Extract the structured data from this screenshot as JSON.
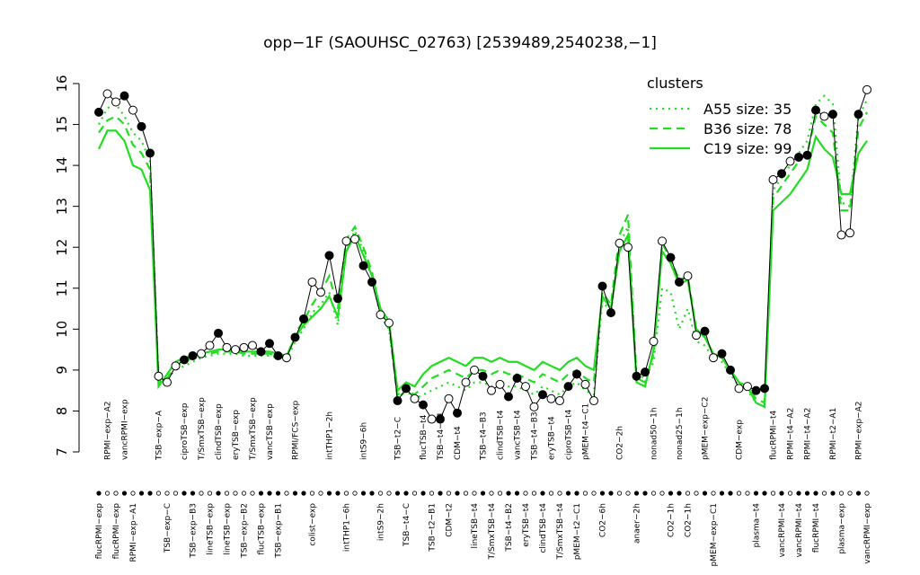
{
  "chart_data": {
    "type": "line",
    "title": "opp−1F (SAOUHSC_02763) [2539489,2540238,−1]",
    "ylim": [
      7,
      16
    ],
    "yticks": [
      7,
      8,
      9,
      10,
      11,
      12,
      13,
      14,
      15,
      16
    ],
    "legend_title": "clusters",
    "legend_position": "top-right",
    "categories": [
      "flucRPMI−exp",
      "RPMI−exp−A2",
      "flucRPMI−exp",
      "vancRPMI−exp",
      "RPMI−exp−A1",
      null,
      null,
      "TSB−exp−A",
      "TSB−exp−C",
      null,
      "ciproTSB−exp",
      "TSB−exp−B3",
      "T/SmxTSB−exp",
      "lineTSB−exp",
      "clindTSB−exp",
      "lineTSB−exp",
      "eryTSB−exp",
      "TSB−exp−B2",
      "T/SmxTSB−exp",
      "flucTSB−exp",
      "vancTSB−exp",
      "TSB−exp−B1",
      null,
      "RPMI/FCS−exp",
      null,
      "colist−exp",
      null,
      "intTHP1−2h",
      null,
      "intTHP1−6h",
      null,
      "intS9−6h",
      null,
      "intS9−2h",
      null,
      "TSB−t2−C",
      "TSB−t4−C",
      null,
      "flucTSB−t4",
      "TSB−t2−B1",
      "TSB−t4−B1",
      "CDM−t2",
      "CDM−t4",
      null,
      "lineTSB−t4",
      "TSB−t4−B3",
      "T/SmxTSB−t4",
      "clindTSB−t4",
      "TSB−t4−B2",
      "vancTSB−t4",
      "eryTSB−t4",
      "TSB−t4−B3",
      "clindTSB−t4",
      "eryTSB−t4",
      "T/SmxTSB−t4",
      "ciproTSB−t4",
      "pMEM−t2−C1",
      "pMEM−t4−C1",
      null,
      "CO2−6h",
      null,
      "CO2−2h",
      null,
      "anaer−2h",
      null,
      "nonad50−1h",
      null,
      "CO2−1h",
      "nonad25−1h",
      "CO2−1h",
      null,
      "pMEM−exp−C2",
      "pMEM−exp−C1",
      null,
      null,
      "CDM−exp",
      null,
      "plasma−t4",
      null,
      "flucRPMI−t4",
      "vancRPMI−t4",
      "RPMI−t4−A2",
      "vancRPMI−t4",
      "RPMI−t4−A2",
      "flucRPMI−t4",
      null,
      "RPMI−t2−A1",
      "plasma−exp",
      null,
      "RPMI−exp−A2",
      "vancRPMI−exp"
    ],
    "series": [
      {
        "color": "black",
        "values": [
          15.3,
          15.75,
          15.55,
          15.7,
          15.35,
          14.95,
          14.3,
          8.85,
          8.7,
          9.1,
          9.25,
          9.35,
          9.4,
          9.6,
          9.9,
          9.55,
          9.5,
          9.55,
          9.6,
          9.45,
          9.65,
          9.35,
          9.3,
          9.8,
          10.25,
          11.15,
          10.9,
          11.8,
          10.75,
          12.15,
          12.2,
          11.55,
          11.15,
          10.35,
          10.15,
          8.25,
          8.55,
          8.3,
          8.15,
          7.8,
          7.8,
          8.3,
          7.95,
          8.7,
          9.0,
          8.85,
          8.5,
          8.65,
          8.35,
          8.8,
          8.6,
          8.1,
          8.4,
          8.3,
          8.25,
          8.6,
          8.9,
          8.65,
          8.25,
          11.05,
          10.4,
          12.1,
          12.0,
          8.85,
          8.95,
          9.7,
          12.15,
          11.75,
          11.15,
          11.3,
          9.85,
          9.95,
          9.3,
          9.4,
          9.0,
          8.55,
          8.6,
          8.5,
          8.55,
          13.65,
          13.8,
          14.1,
          14.2,
          14.25,
          15.35,
          15.2,
          15.25,
          12.3,
          12.35,
          15.25,
          15.85
        ],
        "marker_fills": [
          "black",
          "white",
          "white",
          "black",
          "white",
          "black",
          "black",
          "white",
          "white",
          "white",
          "black",
          "black",
          "white",
          "white",
          "black",
          "white",
          "white",
          "white",
          "white",
          "black",
          "black",
          "black",
          "white",
          "black",
          "black",
          "white",
          "white",
          "black",
          "black",
          "white",
          "white",
          "black",
          "black",
          "white",
          "white",
          "black",
          "black",
          "white",
          "black",
          "white",
          "black",
          "white",
          "black",
          "white",
          "white",
          "black",
          "white",
          "white",
          "black",
          "black",
          "white",
          "white",
          "black",
          "white",
          "white",
          "black",
          "black",
          "white",
          "white",
          "black",
          "black",
          "white",
          "white",
          "black",
          "black",
          "white",
          "white",
          "black",
          "black",
          "white",
          "white",
          "black",
          "white",
          "black",
          "black",
          "white",
          "white",
          "black",
          "black",
          "white",
          "black",
          "white",
          "black",
          "black",
          "black",
          "white",
          "black",
          "white",
          "white",
          "black",
          "white"
        ]
      },
      {
        "name": "A55 size: 35",
        "color": "#22dd22",
        "dash": "dotted",
        "values": [
          15.0,
          15.4,
          15.5,
          15.2,
          14.8,
          14.6,
          14.1,
          8.8,
          8.8,
          9.0,
          9.1,
          9.2,
          9.3,
          9.35,
          9.4,
          9.4,
          9.4,
          9.35,
          9.35,
          9.35,
          9.35,
          9.3,
          9.25,
          9.7,
          10.0,
          10.4,
          10.6,
          10.9,
          10.1,
          12.0,
          12.4,
          11.9,
          11.3,
          10.3,
          10.0,
          8.4,
          8.5,
          8.3,
          8.4,
          8.5,
          8.6,
          8.7,
          8.6,
          8.5,
          8.7,
          8.7,
          8.6,
          8.7,
          8.6,
          8.6,
          8.5,
          8.4,
          8.6,
          8.5,
          8.4,
          8.6,
          8.7,
          8.5,
          8.4,
          10.7,
          10.4,
          12.1,
          12.5,
          8.9,
          8.8,
          9.2,
          11.0,
          10.9,
          10.0,
          10.5,
          9.7,
          9.6,
          9.3,
          9.2,
          8.9,
          8.6,
          8.5,
          8.2,
          8.1,
          13.4,
          13.7,
          14.0,
          14.3,
          14.6,
          15.5,
          15.7,
          15.5,
          13.1,
          13.0,
          15.2,
          15.6
        ]
      },
      {
        "name": "B36 size: 78",
        "color": "#22dd22",
        "dash": "dashed",
        "values": [
          14.8,
          15.1,
          15.2,
          15.0,
          14.5,
          14.3,
          13.9,
          8.7,
          8.8,
          9.1,
          9.2,
          9.3,
          9.35,
          9.4,
          9.45,
          9.45,
          9.45,
          9.4,
          9.4,
          9.4,
          9.4,
          9.35,
          9.3,
          9.9,
          10.2,
          10.6,
          10.9,
          11.3,
          10.5,
          12.2,
          12.5,
          12.0,
          11.4,
          10.4,
          10.1,
          8.3,
          8.5,
          8.4,
          8.6,
          8.8,
          8.9,
          9.0,
          8.9,
          8.8,
          9.0,
          9.0,
          8.9,
          9.0,
          8.9,
          8.9,
          8.8,
          8.7,
          8.9,
          8.8,
          8.7,
          8.9,
          9.0,
          8.8,
          8.7,
          10.9,
          10.6,
          12.3,
          12.8,
          8.8,
          8.7,
          9.4,
          12.1,
          11.7,
          11.2,
          11.3,
          10.0,
          9.8,
          9.4,
          9.3,
          9.0,
          8.7,
          8.6,
          8.3,
          8.2,
          13.2,
          13.5,
          13.8,
          14.1,
          14.3,
          15.2,
          15.0,
          14.8,
          12.9,
          12.9,
          14.9,
          15.3
        ]
      },
      {
        "name": "C19 size: 99",
        "color": "#22dd22",
        "dash": "solid",
        "values": [
          14.4,
          14.85,
          14.85,
          14.6,
          14.0,
          13.9,
          13.4,
          8.6,
          8.9,
          9.2,
          9.3,
          9.35,
          9.4,
          9.45,
          9.5,
          9.5,
          9.5,
          9.45,
          9.45,
          9.45,
          9.45,
          9.4,
          9.35,
          9.8,
          10.1,
          10.3,
          10.5,
          10.8,
          10.3,
          11.9,
          12.3,
          11.8,
          11.3,
          10.5,
          10.2,
          8.5,
          8.7,
          8.6,
          8.9,
          9.1,
          9.2,
          9.3,
          9.2,
          9.1,
          9.3,
          9.3,
          9.2,
          9.3,
          9.2,
          9.2,
          9.1,
          9.0,
          9.2,
          9.1,
          9.0,
          9.2,
          9.3,
          9.1,
          9.0,
          10.8,
          10.5,
          11.9,
          12.3,
          8.7,
          8.6,
          9.5,
          11.9,
          11.6,
          11.1,
          11.2,
          10.0,
          9.8,
          9.4,
          9.3,
          9.0,
          8.7,
          8.6,
          8.2,
          8.1,
          12.9,
          13.1,
          13.3,
          13.6,
          13.9,
          14.7,
          14.4,
          14.2,
          13.3,
          13.3,
          14.3,
          14.6
        ]
      }
    ]
  }
}
